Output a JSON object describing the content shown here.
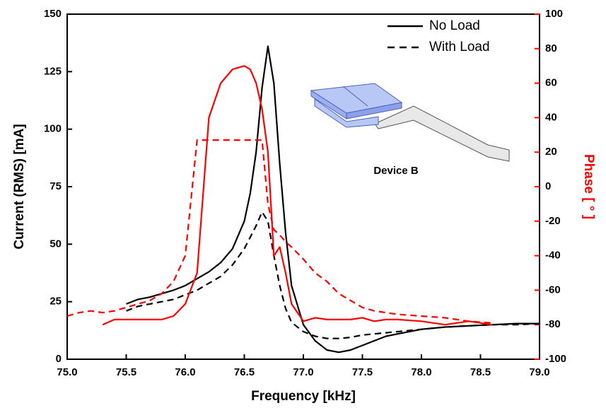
{
  "chart_data": {
    "type": "line",
    "x_label": "Frequency [kHz]",
    "y_label": "Current (RMS) [mA]",
    "y2_label": "Phase [ ° ]",
    "annotation": "Device B",
    "legend_position": "upper right",
    "x": [
      75.0,
      75.1,
      75.2,
      75.3,
      75.4,
      75.5,
      75.6,
      75.7,
      75.8,
      75.9,
      76.0,
      76.1,
      76.2,
      76.3,
      76.4,
      76.5,
      76.55,
      76.6,
      76.65,
      76.7,
      76.75,
      76.8,
      76.85,
      76.9,
      77.0,
      77.1,
      77.2,
      77.3,
      77.4,
      77.5,
      77.6,
      77.7,
      77.8,
      78.0,
      78.2,
      78.4,
      78.6,
      78.8,
      79.0
    ],
    "series": [
      {
        "name": "No Load",
        "color": "#000000",
        "dash": false,
        "axis": "y",
        "values": [
          null,
          null,
          null,
          null,
          null,
          24,
          26,
          27,
          28.5,
          30,
          32,
          35,
          38,
          42,
          48,
          60,
          72,
          90,
          118,
          136,
          120,
          85,
          55,
          32,
          15,
          8,
          4,
          3,
          4,
          6,
          8,
          10,
          11,
          13,
          14,
          14.5,
          15,
          15.5,
          15.5
        ]
      },
      {
        "name": "With Load",
        "color": "#000000",
        "dash": true,
        "axis": "y",
        "values": [
          null,
          null,
          null,
          null,
          null,
          21,
          23,
          24,
          25,
          26,
          28,
          30,
          33,
          36,
          41,
          48,
          53,
          58,
          64,
          60,
          45,
          32,
          22,
          16,
          12,
          10,
          9,
          9,
          9.5,
          10.5,
          11,
          11.5,
          12,
          13,
          14,
          14.5,
          15,
          15,
          15.5
        ]
      },
      {
        "name": "No Load",
        "color": "#ff0000",
        "dash": false,
        "axis": "y2",
        "values": [
          null,
          null,
          null,
          -80,
          -77,
          -77,
          -77,
          -77,
          -77,
          -75,
          -68,
          -50,
          40,
          60,
          68,
          70,
          68,
          60,
          45,
          20,
          -40,
          -35,
          -50,
          -68,
          -78,
          -76,
          -77,
          -77,
          -77,
          -76,
          -78,
          -77,
          -77,
          -78,
          -80,
          -78,
          -80,
          null,
          null
        ]
      },
      {
        "name": "With Load",
        "color": "#ff0000",
        "dash": true,
        "axis": "y2",
        "values": [
          -75,
          -73,
          -72,
          -73,
          -72,
          -70,
          -68,
          -66,
          -62,
          -55,
          -40,
          27,
          27,
          27,
          27,
          27,
          27,
          27,
          27,
          -10,
          -25,
          -28,
          -32,
          -35,
          -42,
          -50,
          -55,
          -62,
          -66,
          -70,
          -72,
          -73,
          -74,
          -75,
          -76,
          -78,
          -79,
          null,
          null
        ]
      }
    ],
    "xlim": [
      75.0,
      79.0
    ],
    "xticks": [
      {
        "value": 75.0,
        "label": "75.0"
      },
      {
        "value": 75.5,
        "label": "75.5"
      },
      {
        "value": 76.0,
        "label": "76.0"
      },
      {
        "value": 76.5,
        "label": "76.5"
      },
      {
        "value": 77.0,
        "label": "77.0"
      },
      {
        "value": 77.5,
        "label": "77.5"
      },
      {
        "value": 78.0,
        "label": "78.0"
      },
      {
        "value": 78.5,
        "label": "78.5"
      },
      {
        "value": 79.0,
        "label": "79.0"
      }
    ],
    "ylim": [
      0,
      150
    ],
    "yticks": [
      0,
      25,
      50,
      75,
      100,
      125,
      150
    ],
    "y2lim": [
      -100,
      100
    ],
    "y2ticks": [
      -100,
      -80,
      -60,
      -40,
      -20,
      0,
      20,
      40,
      60,
      80,
      100
    ],
    "y2_color": "#ff0000"
  }
}
